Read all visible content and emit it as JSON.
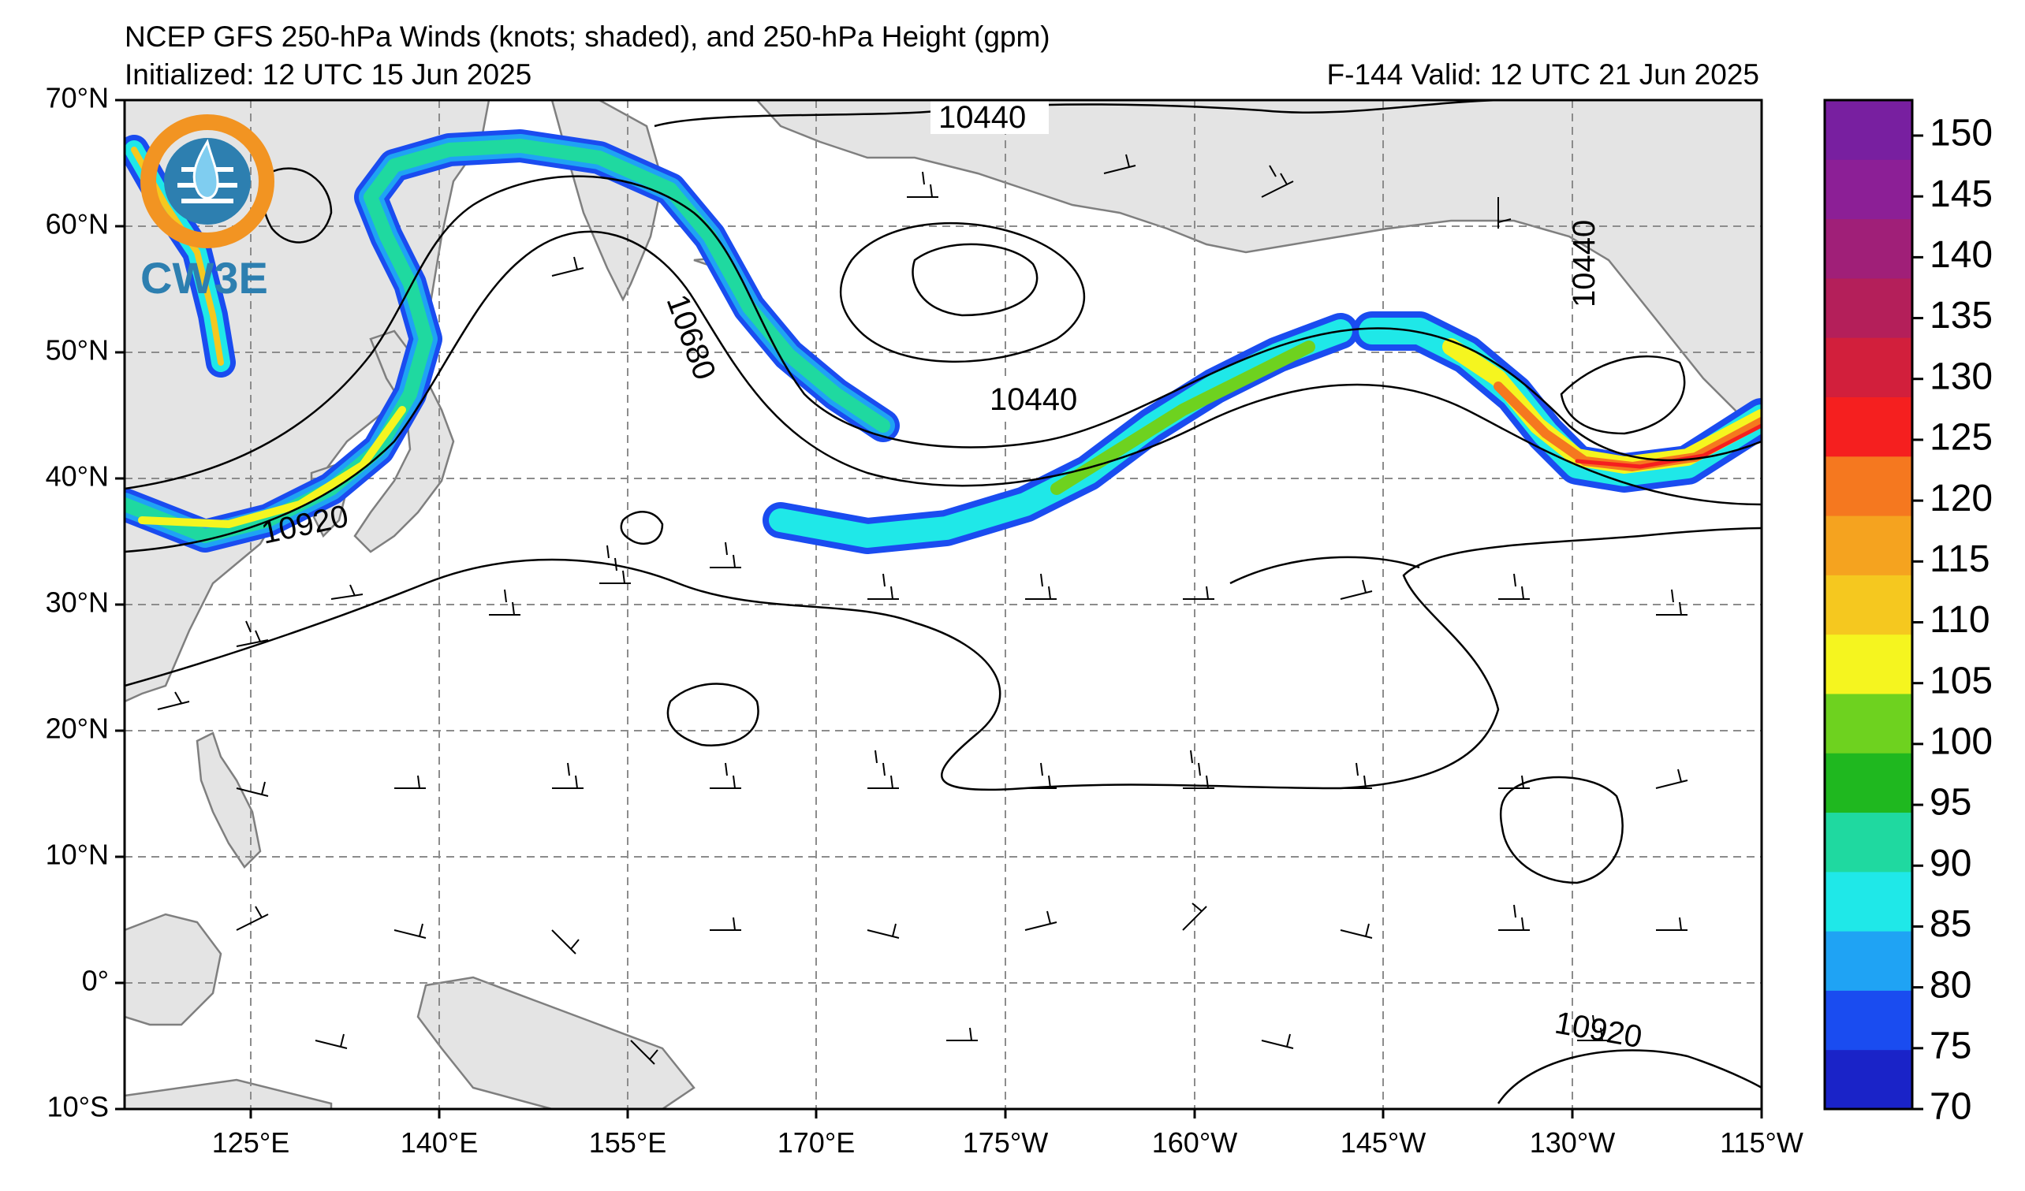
{
  "header": {
    "title": "NCEP GFS 250-hPa Winds (knots; shaded), and 250-hPa Height (gpm)",
    "initialized": "Initialized: 12 UTC 15 Jun 2025",
    "valid": "F-144  Valid: 12 UTC 21 Jun 2025"
  },
  "logo": {
    "text": "CW3E"
  },
  "axes": {
    "lat_labels": [
      "70°N",
      "60°N",
      "50°N",
      "40°N",
      "30°N",
      "20°N",
      "10°N",
      "0°",
      "10°S"
    ],
    "lon_labels": [
      "125°E",
      "140°E",
      "155°E",
      "170°E",
      "175°W",
      "160°W",
      "145°W",
      "130°W",
      "115°W"
    ]
  },
  "colorbar": {
    "labels": [
      "150",
      "145",
      "140",
      "135",
      "130",
      "125",
      "120",
      "115",
      "110",
      "105",
      "100",
      "95",
      "90",
      "85",
      "80",
      "75",
      "70"
    ],
    "colors": [
      "#1a23c8",
      "#1a4cf0",
      "#1fa3f4",
      "#1fe8e8",
      "#1fd9a0",
      "#1fb81f",
      "#6ed21f",
      "#f5f51f",
      "#f5c81f",
      "#f5a31f",
      "#f5781f",
      "#f51f1f",
      "#d21f3c",
      "#b41f5a",
      "#a01f78",
      "#8c1f96",
      "#781fa0"
    ]
  },
  "contour_labels": [
    "10440",
    "10440",
    "10440",
    "10680",
    "10920",
    "10920"
  ],
  "colors": {
    "land": "#e4e4e4",
    "coast": "#7f7f7f",
    "grid": "#8c8c8c",
    "logo_orange": "#f29422",
    "logo_blue": "#2d7fb0"
  }
}
